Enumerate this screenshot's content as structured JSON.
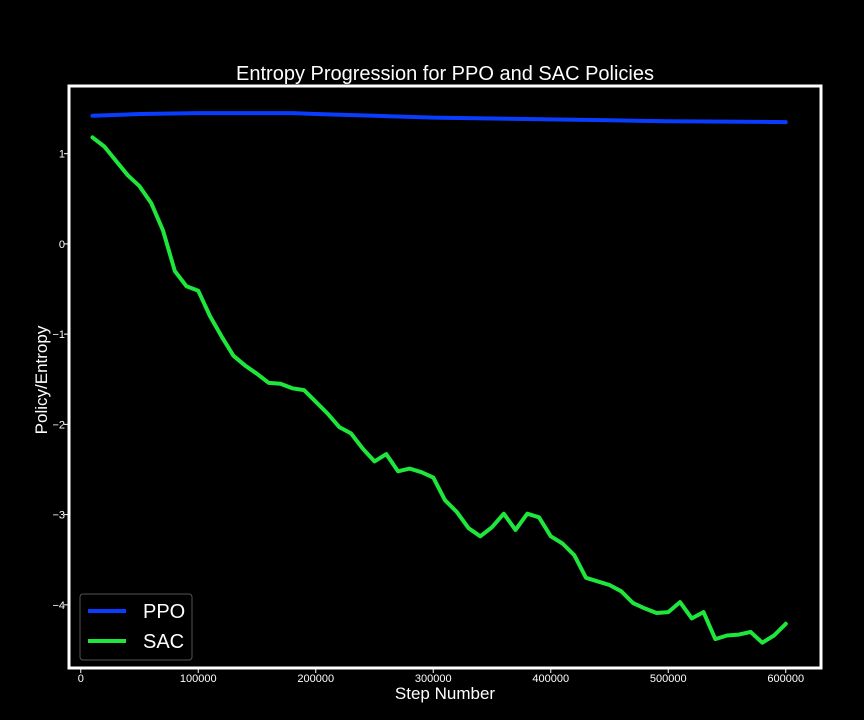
{
  "chart_data": {
    "type": "line",
    "title": "Entropy Progression for PPO and SAC Policies",
    "xlabel": "Step Number",
    "ylabel": "Policy/Entropy",
    "xlim": [
      -10000,
      630000
    ],
    "ylim": [
      -4.7,
      1.75
    ],
    "xticks": [
      0,
      100000,
      200000,
      300000,
      400000,
      500000,
      600000
    ],
    "xtick_labels": [
      "0",
      "100000",
      "200000",
      "300000",
      "400000",
      "500000",
      "600000"
    ],
    "yticks": [
      1,
      0,
      -1,
      -2,
      -3,
      -4
    ],
    "ytick_labels": [
      "1",
      "0",
      "−1",
      "−2",
      "−3",
      "−4"
    ],
    "grid": false,
    "legend_position": "lower-left",
    "background": "#000000",
    "series": [
      {
        "name": "PPO",
        "color": "#0a3cff",
        "x": [
          10000,
          50000,
          100000,
          150000,
          180000,
          200000,
          250000,
          300000,
          350000,
          400000,
          450000,
          500000,
          550000,
          600000
        ],
        "y": [
          1.42,
          1.44,
          1.45,
          1.45,
          1.45,
          1.44,
          1.42,
          1.4,
          1.39,
          1.38,
          1.37,
          1.36,
          1.355,
          1.35
        ]
      },
      {
        "name": "SAC",
        "color": "#1ee63c",
        "x": [
          10000,
          20000,
          30000,
          40000,
          50000,
          60000,
          70000,
          80000,
          90000,
          100000,
          110000,
          120000,
          130000,
          140000,
          150000,
          160000,
          170000,
          180000,
          190000,
          200000,
          210000,
          220000,
          230000,
          240000,
          250000,
          260000,
          270000,
          280000,
          290000,
          300000,
          310000,
          320000,
          330000,
          340000,
          350000,
          360000,
          370000,
          380000,
          390000,
          400000,
          410000,
          420000,
          430000,
          440000,
          450000,
          460000,
          470000,
          480000,
          490000,
          500000,
          510000,
          520000,
          530000,
          540000,
          550000,
          560000,
          570000,
          580000,
          590000,
          600000
        ],
        "y": [
          1.18,
          1.08,
          0.92,
          0.76,
          0.64,
          0.45,
          0.15,
          -0.3,
          -0.47,
          -0.52,
          -0.8,
          -1.03,
          -1.24,
          -1.35,
          -1.44,
          -1.54,
          -1.55,
          -1.6,
          -1.62,
          -1.75,
          -1.88,
          -2.03,
          -2.1,
          -2.27,
          -2.41,
          -2.33,
          -2.52,
          -2.49,
          -2.53,
          -2.59,
          -2.84,
          -2.97,
          -3.15,
          -3.24,
          -3.14,
          -2.99,
          -3.17,
          -2.99,
          -3.03,
          -3.24,
          -3.32,
          -3.45,
          -3.7,
          -3.74,
          -3.78,
          -3.85,
          -3.98,
          -4.04,
          -4.09,
          -4.08,
          -3.97,
          -4.15,
          -4.08,
          -4.38,
          -4.34,
          -4.33,
          -4.3,
          -4.42,
          -4.34,
          -4.21
        ]
      }
    ]
  }
}
